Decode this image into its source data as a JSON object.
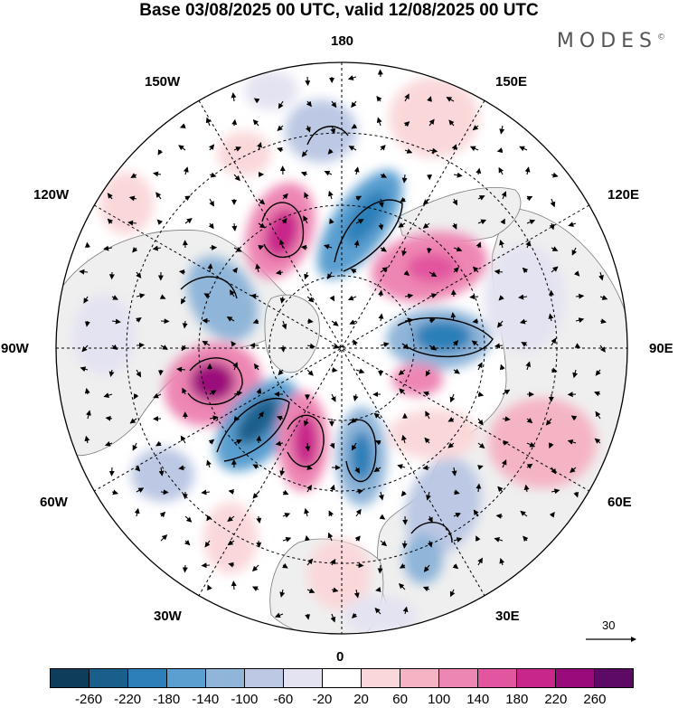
{
  "title": "Base 03/08/2025 00 UTC, valid 12/08/2025 00 UTC",
  "brand": "MODES",
  "brand_mark": "©",
  "longitude_labels": {
    "lon_180": "180",
    "lon_150E": "150E",
    "lon_120E": "120E",
    "lon_90E": "90E",
    "lon_60E": "60E",
    "lon_30E": "30E",
    "lon_0": "0",
    "lon_30W": "30W",
    "lon_60W": "60W",
    "lon_90W": "90W",
    "lon_120W": "120W",
    "lon_150W": "150W"
  },
  "reference_vector": {
    "value": "30"
  },
  "colorbar": {
    "colors": [
      "#0e3d5c",
      "#1a5f8c",
      "#2c7fb8",
      "#5a9fd0",
      "#8fb5d9",
      "#bcc8e4",
      "#e4e3f1",
      "#ffffff",
      "#fad8da",
      "#f5b4c4",
      "#ee86b3",
      "#e2559f",
      "#c9268a",
      "#9b0a7a",
      "#5c0a63"
    ],
    "ticks": [
      "-260",
      "-220",
      "-180",
      "-140",
      "-100",
      "-60",
      "-20",
      "20",
      "60",
      "100",
      "140",
      "180",
      "220",
      "260"
    ]
  },
  "colors": {
    "land": "#efefef",
    "coast": "#7a7a7a",
    "grid": "#000000"
  }
}
